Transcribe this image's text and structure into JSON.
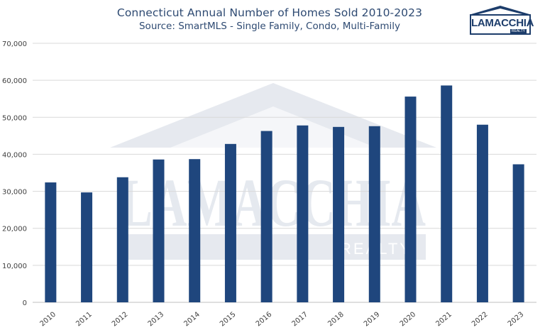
{
  "header": {
    "title": "Connecticut Annual Number of Homes Sold 2010-2023",
    "subtitle": "Source: SmartMLS - Single Family, Condo, Multi-Family"
  },
  "logo": {
    "text": "LAMACCHIA",
    "subtext": "REALTY",
    "color": "#1d3d6b"
  },
  "watermark": {
    "text": "LAMACCHIA",
    "subtext": "REALTY",
    "color": "#dde2ea"
  },
  "chart_data": {
    "type": "bar",
    "title": "Connecticut Annual Number of Homes Sold 2010-2023",
    "subtitle": "Source: SmartMLS - Single Family, Condo, Multi-Family",
    "xlabel": "",
    "ylabel": "",
    "categories": [
      "2010",
      "2011",
      "2012",
      "2013",
      "2014",
      "2015",
      "2016",
      "2017",
      "2018",
      "2019",
      "2020",
      "2021",
      "2022",
      "2023"
    ],
    "values": [
      32400,
      29700,
      33800,
      38600,
      38700,
      42800,
      46300,
      47800,
      47400,
      47600,
      55600,
      58600,
      48000,
      37300
    ],
    "ylim": [
      0,
      70000
    ],
    "yticks": [
      0,
      10000,
      20000,
      30000,
      40000,
      50000,
      60000,
      70000
    ],
    "ytick_labels": [
      "0",
      "10,000",
      "20,000",
      "30,000",
      "40,000",
      "50,000",
      "60,000",
      "70,000"
    ],
    "grid": true,
    "legend": "none",
    "bar_color": "#1f467d",
    "grid_color": "#d9d9d9"
  }
}
